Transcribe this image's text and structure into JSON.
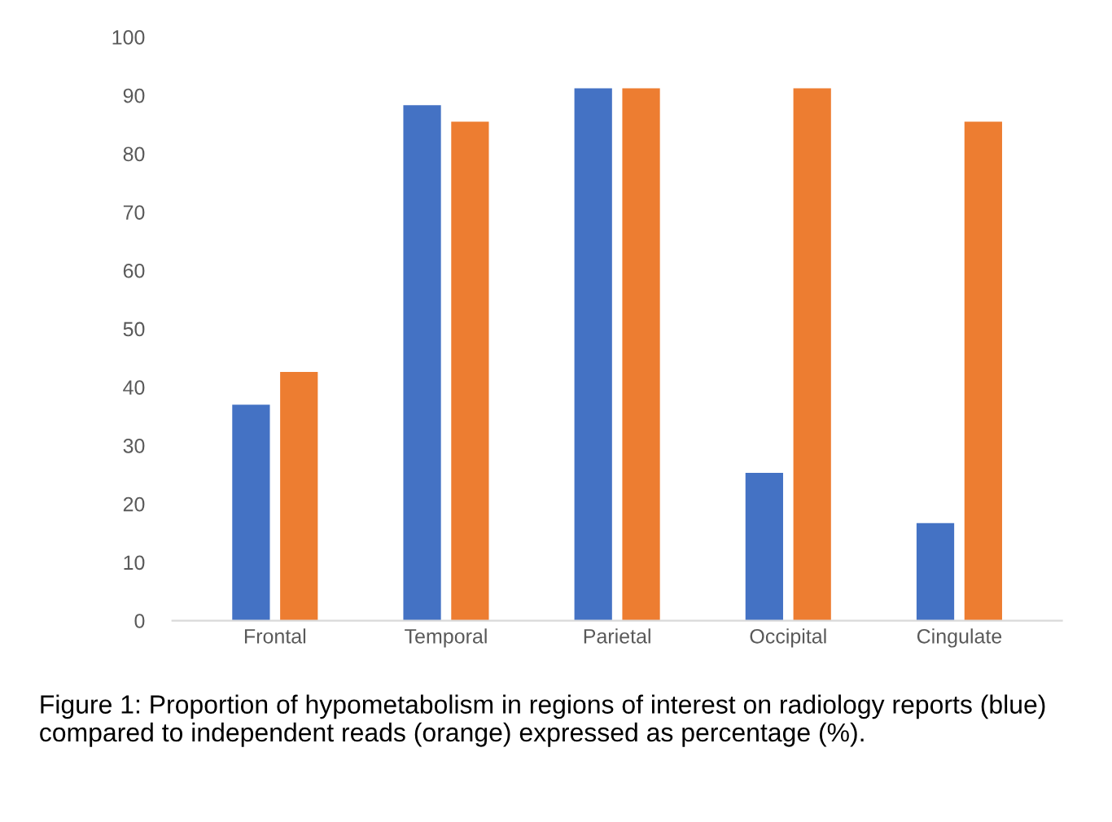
{
  "chart_data": {
    "type": "bar",
    "categories": [
      "Frontal",
      "Temporal",
      "Parietal",
      "Occipital",
      "Cingulate"
    ],
    "series": [
      {
        "color": "#4472c4",
        "values": [
          37,
          88.3,
          91.2,
          25.3,
          16.7
        ]
      },
      {
        "color": "#ed7d31",
        "values": [
          42.6,
          85.5,
          91.2,
          91.2,
          85.5
        ]
      }
    ],
    "ylim": [
      0,
      100
    ],
    "yticks": [
      0,
      10,
      20,
      30,
      40,
      50,
      60,
      70,
      80,
      90,
      100
    ],
    "grid": false,
    "legend": false,
    "annotations": [
      "Figure 1: Proportion of hypometabolism in regions of interest on radiology reports (blue) compared to independent reads (orange) expressed as percentage (%)."
    ]
  }
}
